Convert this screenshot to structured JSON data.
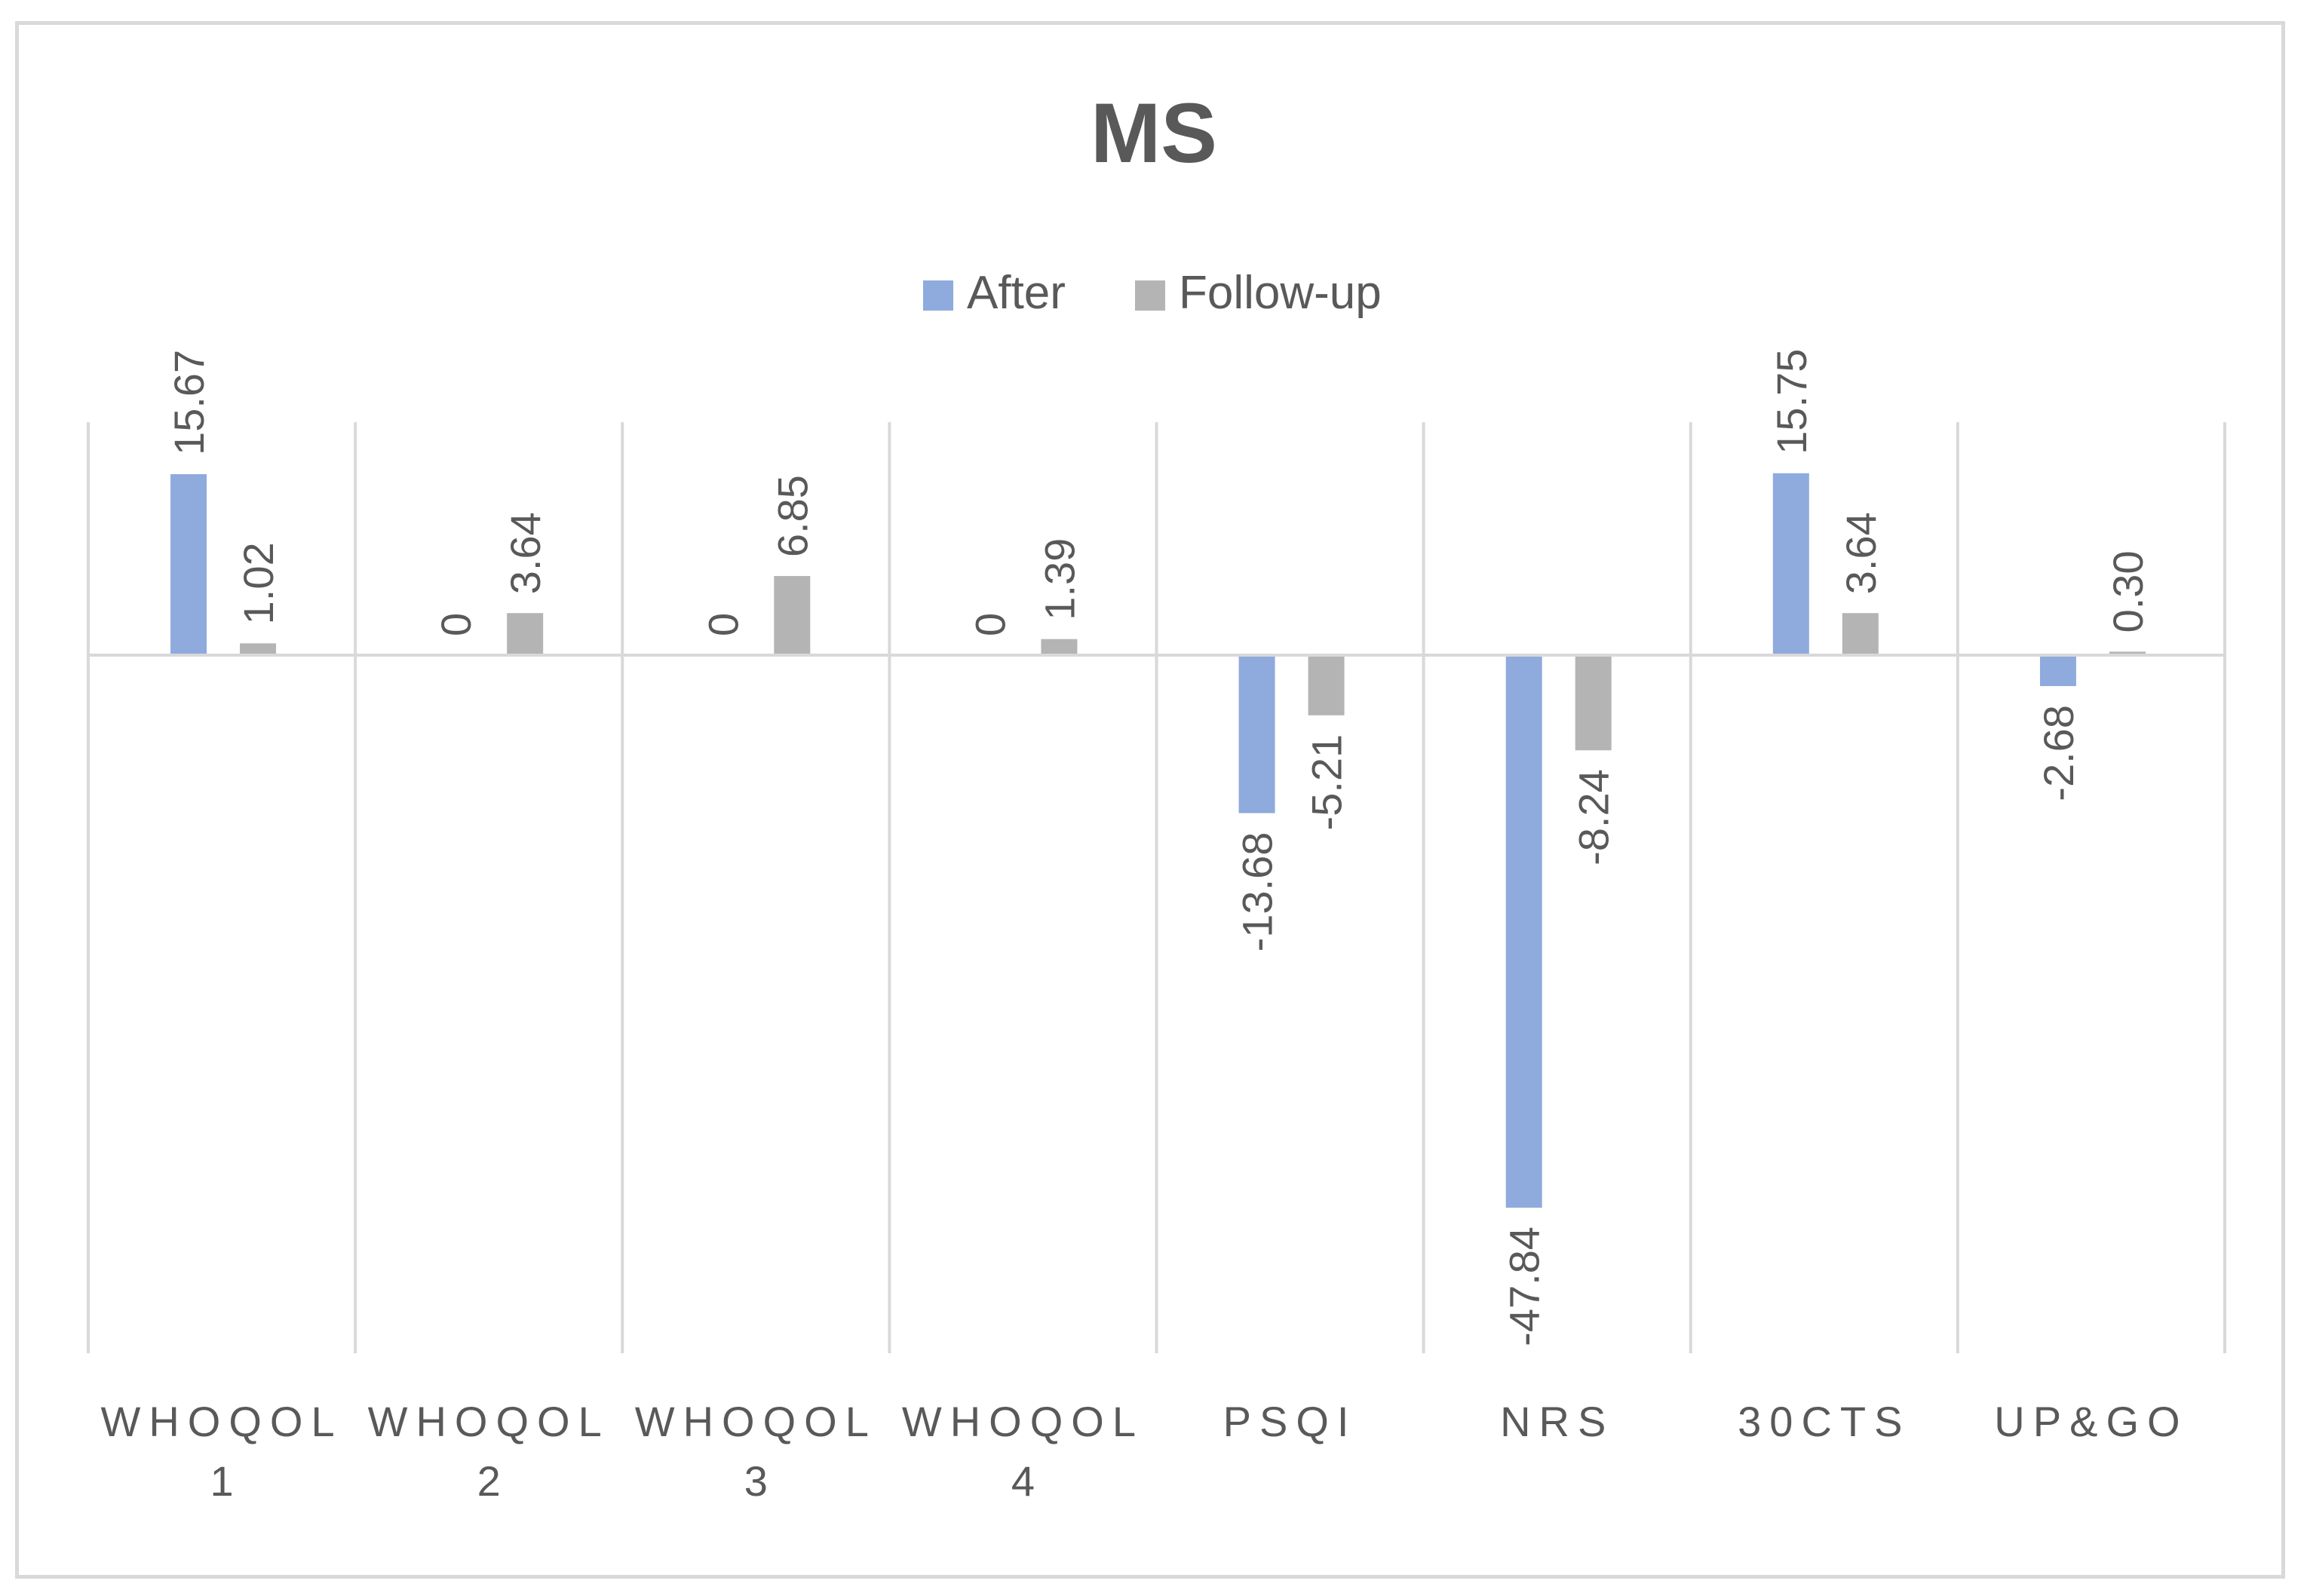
{
  "chart_data": {
    "type": "bar",
    "title": "MS",
    "categories": [
      [
        "WHOQOL",
        "1"
      ],
      [
        "WHOQOL",
        "2"
      ],
      [
        "WHOQOL",
        "3"
      ],
      [
        "WHOQOL",
        "4"
      ],
      [
        "PSQI"
      ],
      [
        "NRS"
      ],
      [
        "30CTS"
      ],
      [
        "UP&GO"
      ]
    ],
    "series": [
      {
        "name": "After",
        "color": "#8faadc",
        "values": [
          15.67,
          0,
          0,
          0,
          -13.68,
          -47.84,
          15.75,
          -2.68
        ],
        "labels": [
          "15.67",
          "0",
          "0",
          "0",
          "-13.68",
          "-47.84",
          "15.75",
          "-2.68"
        ]
      },
      {
        "name": "Follow-up",
        "color": "#b4b4b4",
        "values": [
          1.02,
          3.64,
          6.85,
          1.39,
          -5.21,
          -8.24,
          3.64,
          0.3
        ],
        "labels": [
          "1.02",
          "3.64",
          "6.85",
          "1.39",
          "-5.21",
          "-8.24",
          "3.64",
          "0.30"
        ]
      }
    ],
    "ylim": [
      -60,
      20
    ],
    "grid": "vertical category separators",
    "legend_position": "top-center",
    "data_labels": "rotated vertical",
    "colors": {
      "text": "#595959",
      "grid": "#d9d9d9",
      "frame": "#d9d9d9"
    }
  }
}
